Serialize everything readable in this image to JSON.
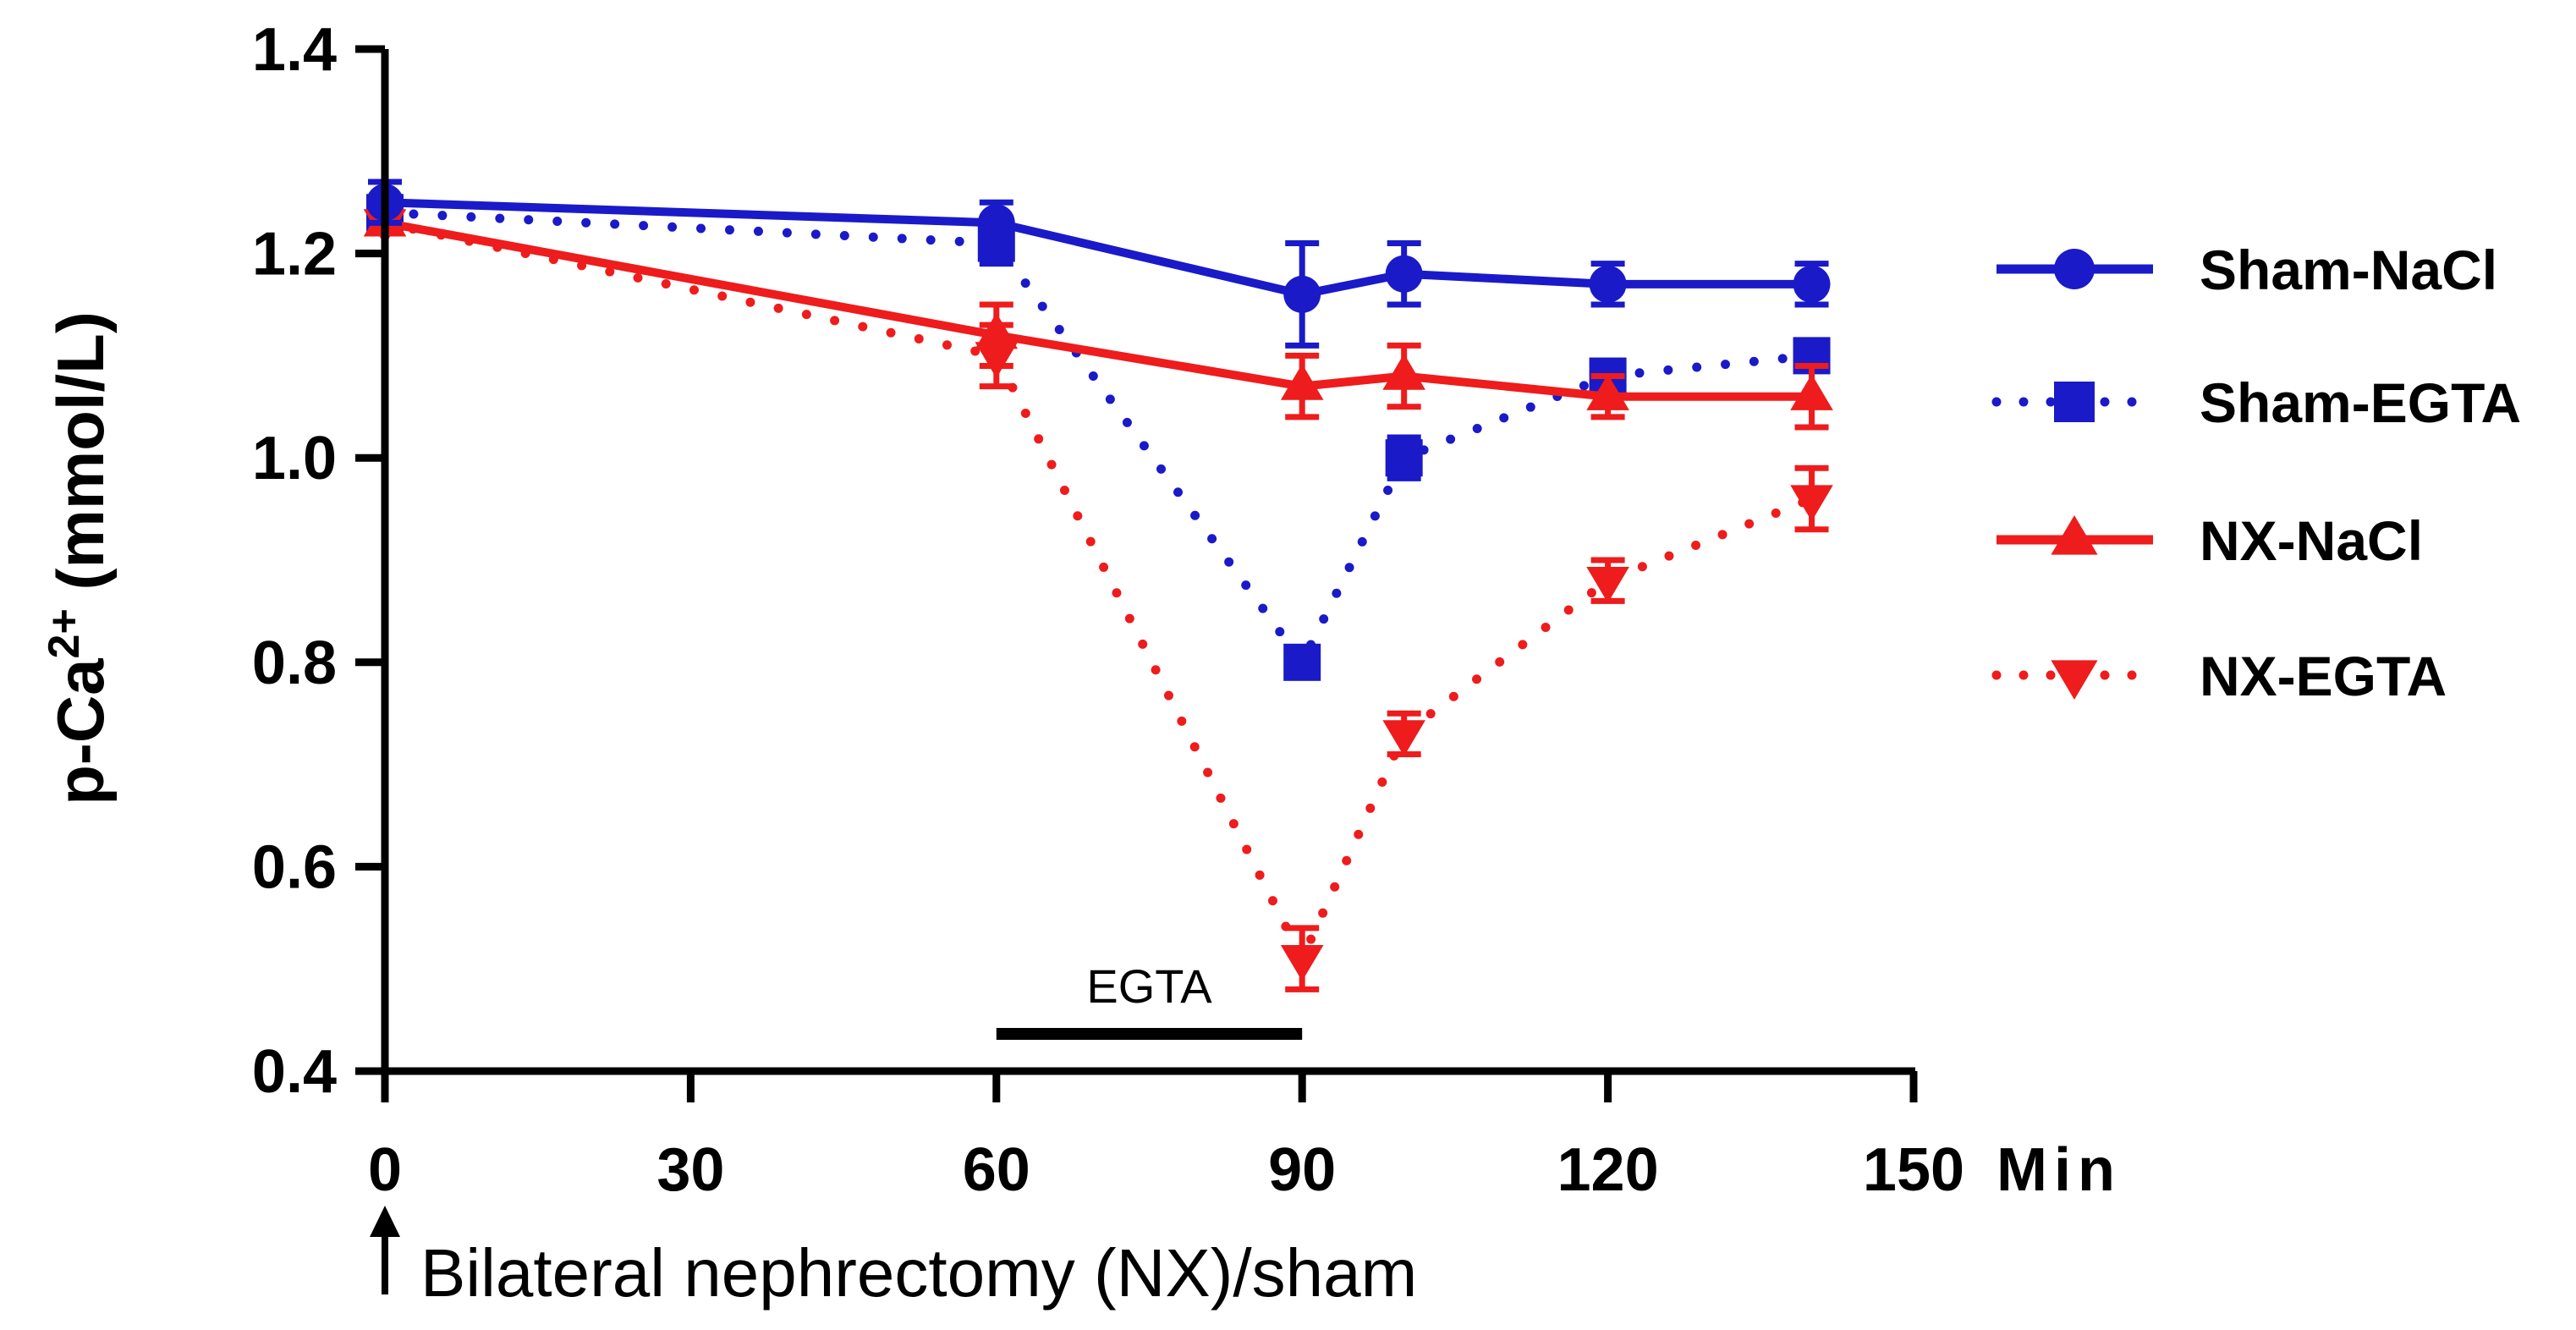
{
  "chart_data": {
    "type": "line",
    "title": "",
    "xlabel": "Bilateral nephrectomy (NX)/sham",
    "ylabel_main": "p-Ca",
    "ylabel_sup": "2+",
    "ylabel_units": " (mmol/L)",
    "x_unit": "Min",
    "xlim": [
      0,
      150
    ],
    "ylim": [
      0.4,
      1.4
    ],
    "x_ticks": [
      0,
      30,
      60,
      90,
      120,
      150
    ],
    "y_ticks": [
      "0.4",
      "0.6",
      "0.8",
      "1.0",
      "1.2",
      "1.4"
    ],
    "grid": false,
    "legend_position": "right",
    "annotation": {
      "text": "EGTA",
      "x_start": 60,
      "x_end": 90
    },
    "series": [
      {
        "name": "Sham-NaCl",
        "marker": "circle",
        "line": "solid",
        "color": "#1a1ac8",
        "x": [
          0,
          60,
          90,
          100,
          120,
          140
        ],
        "y": [
          1.25,
          1.23,
          1.16,
          1.18,
          1.17,
          1.17
        ],
        "err": [
          0.02,
          0.02,
          0.05,
          0.03,
          0.02,
          0.02
        ]
      },
      {
        "name": "Sham-EGTA",
        "marker": "square",
        "line": "dotted",
        "color": "#1a1ac8",
        "x": [
          0,
          60,
          90,
          100,
          120,
          140
        ],
        "y": [
          1.24,
          1.21,
          0.8,
          1.0,
          1.08,
          1.1
        ],
        "err": [
          0.01,
          0.02,
          0.01,
          0.02,
          0.01,
          0.01
        ]
      },
      {
        "name": "NX-NaCl",
        "marker": "triangle-up",
        "line": "solid",
        "color": "#ee1c1c",
        "x": [
          0,
          60,
          90,
          100,
          120,
          140
        ],
        "y": [
          1.23,
          1.12,
          1.07,
          1.08,
          1.06,
          1.06
        ],
        "err": [
          0.01,
          0.03,
          0.03,
          0.03,
          0.02,
          0.03
        ]
      },
      {
        "name": "NX-EGTA",
        "marker": "triangle-down",
        "line": "dotted",
        "color": "#ee1c1c",
        "x": [
          0,
          60,
          90,
          100,
          120,
          140
        ],
        "y": [
          1.23,
          1.1,
          0.51,
          0.73,
          0.88,
          0.96
        ],
        "err": [
          0.01,
          0.03,
          0.03,
          0.02,
          0.02,
          0.03
        ]
      }
    ]
  }
}
